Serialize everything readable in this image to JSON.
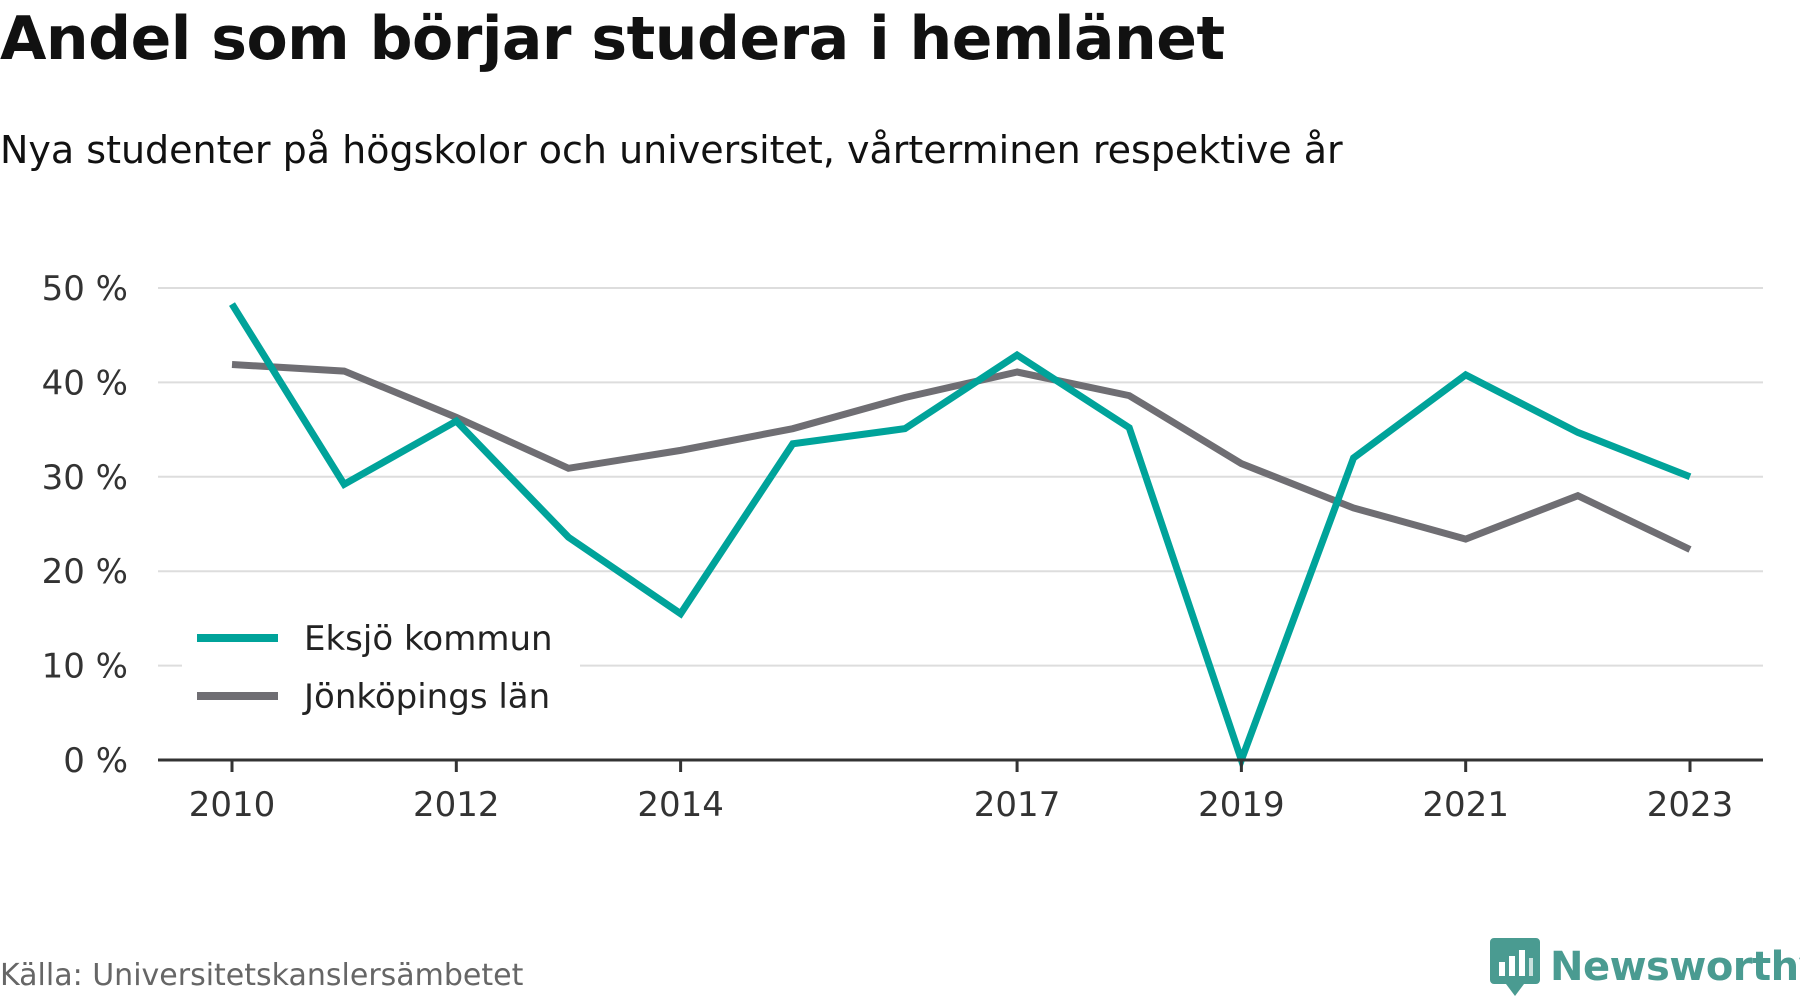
{
  "header": {
    "title": "Andel som börjar studera i hemlänet",
    "subtitle": "Nya studenter på högskolor och universitet, vårterminen respektive år"
  },
  "footer": {
    "source": "Källa: Universitetskanslersämbetet",
    "brand": "Newsworthy"
  },
  "colors": {
    "eksjo": "#00a39a",
    "jonkoping": "#6f6e73",
    "grid": "#dddddd",
    "axis": "#333333"
  },
  "chart_data": {
    "type": "line",
    "x": [
      2010,
      2011,
      2012,
      2013,
      2014,
      2015,
      2016,
      2017,
      2018,
      2019,
      2020,
      2021,
      2022,
      2023
    ],
    "x_tick_labels": [
      "2010",
      "2012",
      "2014",
      "2017",
      "2019",
      "2021",
      "2023"
    ],
    "y_tick_values": [
      0,
      10,
      20,
      30,
      40,
      50
    ],
    "y_tick_labels": [
      "0 %",
      "10 %",
      "20 %",
      "30 %",
      "40 %",
      "50 %"
    ],
    "ylim": [
      0,
      50
    ],
    "grid": true,
    "legend_position": "bottom-left",
    "series": [
      {
        "name": "Eksjö kommun",
        "color": "#00a39a",
        "values": [
          48.3,
          29.2,
          35.9,
          23.6,
          15.5,
          33.5,
          35.1,
          42.9,
          35.2,
          0,
          32.0,
          40.8,
          34.7,
          30.0
        ]
      },
      {
        "name": "Jönköpings län",
        "color": "#6f6e73",
        "values": [
          41.9,
          41.2,
          36.3,
          30.9,
          32.8,
          35.1,
          38.4,
          41.1,
          38.6,
          31.4,
          26.7,
          23.4,
          28.0,
          22.3
        ]
      }
    ]
  }
}
